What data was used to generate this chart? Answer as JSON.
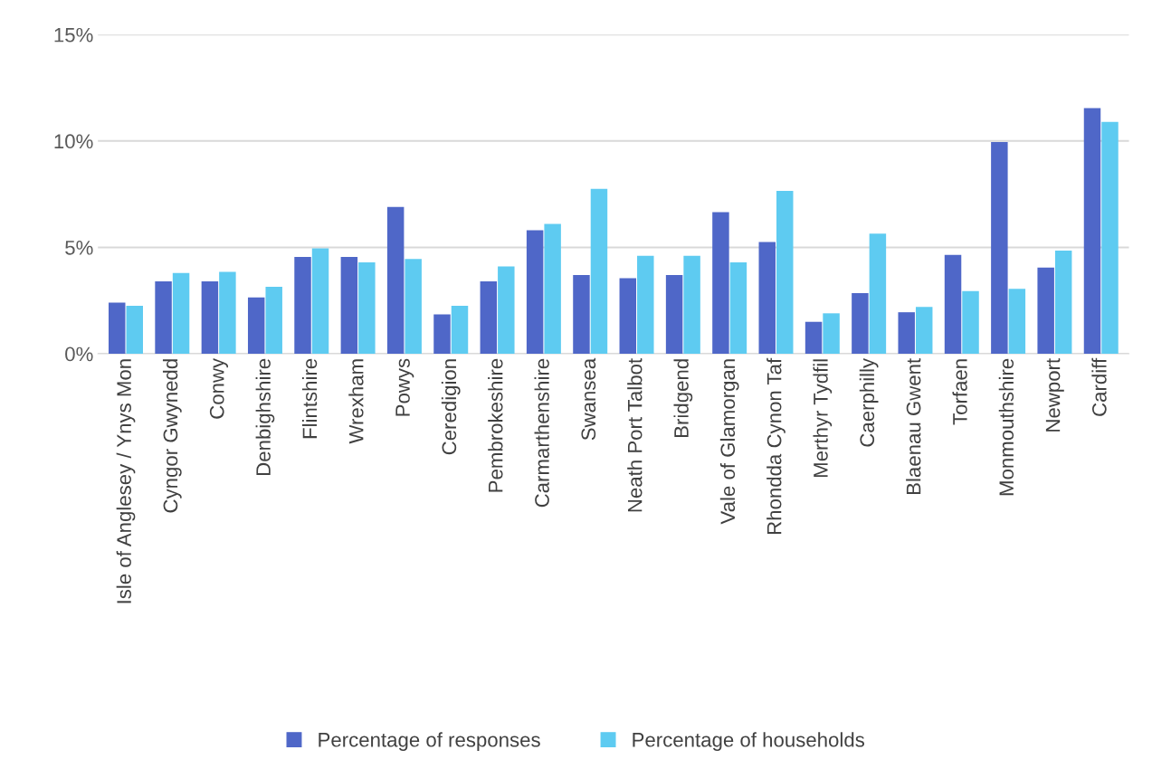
{
  "chart_data": {
    "type": "bar",
    "categories": [
      "Isle of Anglesey / Ynys Mon",
      "Cyngor Gwynedd",
      "Conwy",
      "Denbighshire",
      "Flintshire",
      "Wrexham",
      "Powys",
      "Ceredigion",
      "Pembrokeshire",
      "Carmarthenshire",
      "Swansea",
      "Neath Port Talbot",
      "Bridgend",
      "Vale of Glamorgan",
      "Rhondda Cynon Taf",
      "Merthyr Tydfil",
      "Caerphilly",
      "Blaenau Gwent",
      "Torfaen",
      "Monmouthshire",
      "Newport",
      "Cardiff"
    ],
    "series": [
      {
        "name": "Percentage of responses",
        "color": "#4f67c8",
        "values": [
          2.4,
          3.4,
          3.4,
          2.65,
          4.55,
          4.55,
          6.9,
          1.85,
          3.4,
          5.8,
          3.7,
          3.55,
          3.7,
          6.65,
          5.25,
          1.5,
          2.85,
          1.95,
          4.65,
          9.95,
          4.05,
          11.55
        ]
      },
      {
        "name": "Percentage of households",
        "color": "#5ecbf1",
        "values": [
          2.25,
          3.8,
          3.85,
          3.15,
          4.95,
          4.3,
          4.45,
          2.25,
          4.1,
          6.1,
          7.75,
          4.6,
          4.6,
          4.3,
          7.65,
          1.9,
          5.65,
          2.2,
          2.95,
          3.05,
          4.85,
          10.9
        ]
      }
    ],
    "ylim": [
      0,
      15
    ],
    "yticks": [
      {
        "value": 0,
        "label": "0%"
      },
      {
        "value": 5,
        "label": "5%"
      },
      {
        "value": 10,
        "label": "10%"
      },
      {
        "value": 15,
        "label": "15%"
      }
    ],
    "grid": "y",
    "legend": "bottom"
  }
}
